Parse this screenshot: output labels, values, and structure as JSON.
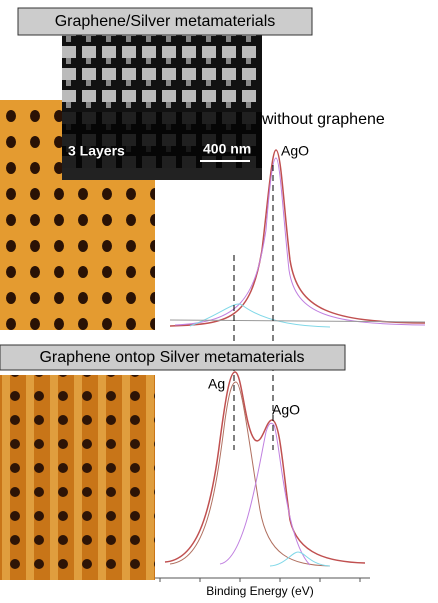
{
  "top": {
    "title": "Graphene/Silver metamaterials",
    "sem_layers": "3 Layers",
    "sem_scale": "400 nm",
    "spectrum_label": "without graphene",
    "peak_label": "AgO"
  },
  "bottom": {
    "title": "Graphene ontop Silver metamaterials",
    "peak_label_1": "Ag",
    "peak_label_2": "AgO"
  },
  "x_axis_label": "Binding Energy (eV)"
}
